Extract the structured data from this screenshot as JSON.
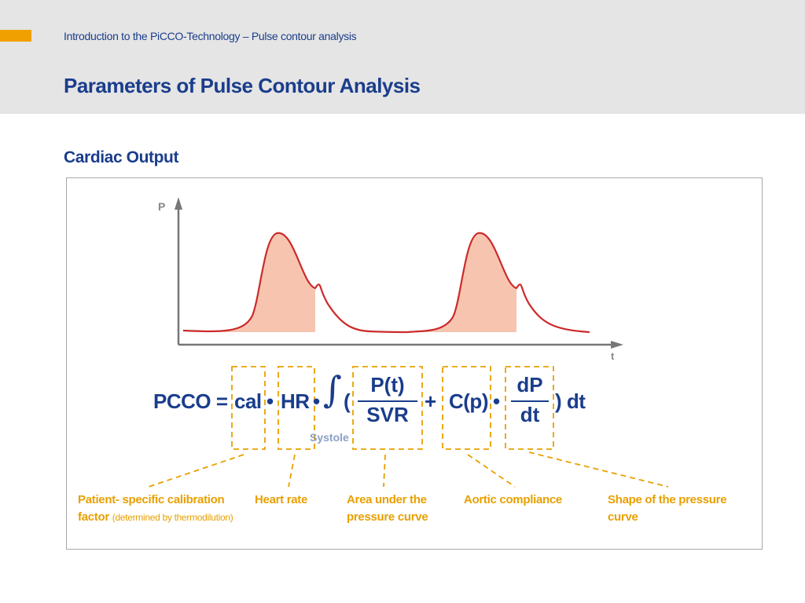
{
  "header": {
    "subtitle": "Introduction to the PiCCO-Technology – Pulse contour analysis",
    "title": "Parameters of Pulse Contour Analysis"
  },
  "section": {
    "title": "Cardiac Output"
  },
  "graph": {
    "y_label": "P",
    "x_label": "t"
  },
  "equation": {
    "lhs": "PCCO =",
    "cal": "cal",
    "dot1": "•",
    "hr": "HR",
    "dot2": "•",
    "integral": "∫",
    "open_paren": "(",
    "pt": "P(t)",
    "svr": "SVR",
    "plus": "+",
    "cp": "C(p)",
    "dot3": "•",
    "dp": "dP",
    "dt_denom": "dt",
    "close": ") dt",
    "systole": "Systole"
  },
  "labels": {
    "calibration_main": "Patient- specific calibration",
    "calibration_factor": "factor",
    "calibration_note": "(determined by thermodilution)",
    "heart_rate": "Heart rate",
    "area_line1": "Area under the",
    "area_line2": "pressure curve",
    "aortic": "Aortic compliance",
    "shape_line1": "Shape of the pressure",
    "shape_line2": "curve"
  },
  "colors": {
    "brand_blue": "#1a3d8c",
    "accent_orange": "#f0a000",
    "annotation_orange": "#e8a000",
    "curve_red": "#cc2a2a",
    "area_fill": "#f7c4b0"
  }
}
